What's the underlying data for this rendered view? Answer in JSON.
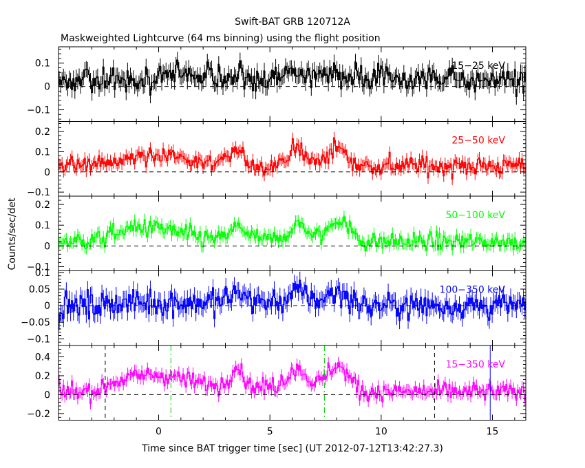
{
  "chart_data": {
    "type": "line",
    "title": "Swift-BAT GRB 120712A",
    "subtitle": "Maskweighted Lightcurve (64 ms binning) using the flight position",
    "xlabel": "Time since BAT trigger time [sec] (UT 2012-07-12T13:42:27.3)",
    "ylabel": "Counts/sec/det",
    "xlim": [
      -4.5,
      16.5
    ],
    "x_ticks": [
      0,
      5,
      10,
      15
    ],
    "x_tick_labels": [
      "0",
      "5",
      "10",
      "15"
    ],
    "bin_width_sec": 0.064,
    "zero_line": "dashed",
    "panels": [
      {
        "name": "15-25 keV",
        "label": "15−25 keV",
        "color": "#000000",
        "ylim": [
          -0.15,
          0.17
        ],
        "y_ticks": [
          -0.1,
          0,
          0.1
        ],
        "y_tick_labels": [
          "−0.1",
          "0",
          "0.1"
        ],
        "noise": 0.038,
        "base_pre": 0.03,
        "base_post": 0.03,
        "bumps": [
          [
            1.0,
            1.6,
            0.02
          ],
          [
            3.6,
            0.5,
            0.03
          ],
          [
            6.2,
            0.6,
            0.035
          ],
          [
            7.8,
            0.8,
            0.025
          ]
        ]
      },
      {
        "name": "25-50 keV",
        "label": "25−50 keV",
        "color": "#ff0000",
        "ylim": [
          -0.12,
          0.25
        ],
        "y_ticks": [
          -0.1,
          0,
          0.1,
          0.2
        ],
        "y_tick_labels": [
          "−0.1",
          "0",
          "0.1",
          "0.2"
        ],
        "noise": 0.032,
        "base_pre": 0.03,
        "base_post": 0.03,
        "bumps": [
          [
            -0.2,
            1.8,
            0.06
          ],
          [
            3.5,
            0.5,
            0.07
          ],
          [
            6.2,
            0.6,
            0.08
          ],
          [
            8.0,
            0.6,
            0.09
          ]
        ]
      },
      {
        "name": "50-100 keV",
        "label": "50−100 keV",
        "color": "#00ff00",
        "ylim": [
          -0.12,
          0.24
        ],
        "y_ticks": [
          -0.1,
          0,
          0.1,
          0.2
        ],
        "y_tick_labels": [
          "−0.1",
          "0",
          "0.1",
          "0.2"
        ],
        "noise": 0.03,
        "base_pre": 0.03,
        "base_post": 0.02,
        "bumps": [
          [
            -0.5,
            1.8,
            0.06
          ],
          [
            3.6,
            0.5,
            0.06
          ],
          [
            6.3,
            0.6,
            0.07
          ],
          [
            8.1,
            0.6,
            0.1
          ]
        ]
      },
      {
        "name": "100-350 keV",
        "label": "100−350 keV",
        "color": "#0000ff",
        "ylim": [
          -0.12,
          0.105
        ],
        "y_ticks": [
          -0.1,
          -0.05,
          0,
          0.05,
          0.1
        ],
        "y_tick_labels": [
          "−0.1",
          "−0.05",
          "0",
          "0.05",
          "0.1"
        ],
        "noise": 0.028,
        "base_pre": 0.01,
        "base_post": 0.0,
        "bumps": [
          [
            3.6,
            0.5,
            0.03
          ],
          [
            6.3,
            0.6,
            0.03
          ],
          [
            8.0,
            0.6,
            0.03
          ]
        ]
      },
      {
        "name": "15-350 keV",
        "label": "15−350 keV",
        "color": "#ff00ff",
        "ylim": [
          -0.27,
          0.52
        ],
        "y_ticks": [
          -0.2,
          0,
          0.2,
          0.4
        ],
        "y_tick_labels": [
          "−0.2",
          "0",
          "0.2",
          "0.4"
        ],
        "noise": 0.065,
        "base_pre": 0.08,
        "base_post": 0.03,
        "bumps": [
          [
            -0.2,
            2.0,
            0.13
          ],
          [
            3.5,
            0.4,
            0.22
          ],
          [
            6.2,
            0.6,
            0.2
          ],
          [
            8.0,
            0.6,
            0.23
          ]
        ],
        "markers": [
          {
            "x": -2.4,
            "style": "dashed",
            "color": "#000000"
          },
          {
            "x": 12.4,
            "style": "dashed",
            "color": "#000000"
          },
          {
            "x": 0.55,
            "style": "dash-dot",
            "color": "#00cc00"
          },
          {
            "x": 7.45,
            "style": "dash-dot",
            "color": "#00cc00"
          },
          {
            "x": 14.9,
            "style": "solid",
            "color": "#0000ff"
          }
        ]
      }
    ],
    "activity_window": [
      -2.3,
      9.0
    ]
  }
}
